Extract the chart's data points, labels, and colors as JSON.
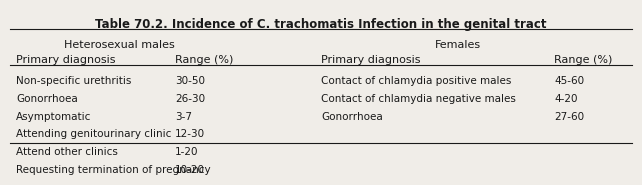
{
  "title": "Table 70.2. Incidence of C. trachomatis Infection in the genital tract",
  "col_header_left": "Heterosexual males",
  "col_header_right": "Females",
  "subheader_left_diag": "Primary diagnosis",
  "subheader_left_range": "Range (%)",
  "subheader_right_diag": "Primary diagnosis",
  "subheader_right_range": "Range (%)",
  "left_rows": [
    [
      "Non-specific urethritis",
      "30-50"
    ],
    [
      "Gonorrhoea",
      "26-30"
    ],
    [
      "Asymptomatic",
      "3-7"
    ],
    [
      "Attending genitourinary clinic",
      "12-30"
    ],
    [
      "Attend other clinics",
      "1-20"
    ],
    [
      "Requesting termination of pregnancy",
      "10-20"
    ]
  ],
  "right_rows": [
    [
      "Contact of chlamydia positive males",
      "45-60"
    ],
    [
      "Contact of chlamydia negative males",
      "4-20"
    ],
    [
      "Gonorrhoea",
      "27-60"
    ],
    [
      "",
      ""
    ],
    [
      "",
      ""
    ],
    [
      "",
      ""
    ]
  ],
  "bg_color": "#f0ede8",
  "text_color": "#1a1a1a",
  "title_fontsize": 8.5,
  "header_fontsize": 8,
  "body_fontsize": 7.5
}
